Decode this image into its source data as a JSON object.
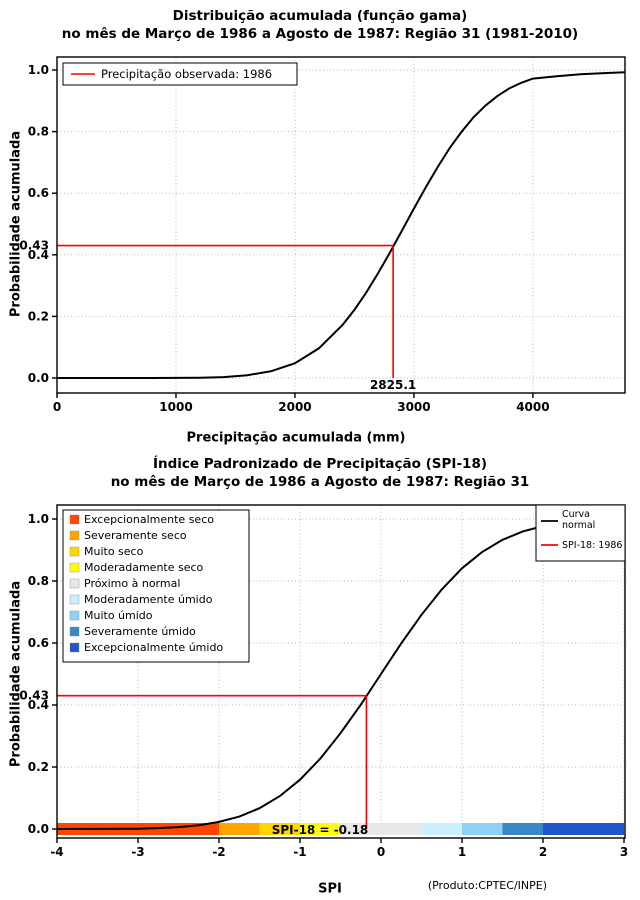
{
  "colors": {
    "accent_red": "#FF0000",
    "curve_black": "#000000",
    "grid": "#B4B4B4",
    "background": "#FFFFFF"
  },
  "chart_data": [
    {
      "id": "gamma-cdf",
      "type": "line",
      "title": "Distribuição acumulada (função gama)",
      "subtitle": "no mês de Março de 1986 a Agosto de 1987: Região 31 (1981-2010)",
      "xlabel": "Precipitação acumulada (mm)",
      "ylabel": "Probabilidade acumulada",
      "xlim": [
        0,
        4774
      ],
      "ylim": [
        0,
        1
      ],
      "xticks": [
        0,
        1000,
        2000,
        3000,
        4000
      ],
      "yticks": [
        0.0,
        0.2,
        0.4,
        0.6,
        0.8,
        1.0
      ],
      "grid": true,
      "legend": {
        "position": "top-left",
        "entries": [
          {
            "label": "Precipitação observada: 1986",
            "color": "#FF0000",
            "type": "line"
          }
        ]
      },
      "series": [
        {
          "name": "Distribuição acumulada (função gama)",
          "color": "#000000",
          "x": [
            0,
            400,
            800,
            1200,
            1400,
            1600,
            1800,
            2000,
            2200,
            2400,
            2500,
            2600,
            2700,
            2800,
            2900,
            3000,
            3100,
            3200,
            3300,
            3400,
            3500,
            3600,
            3700,
            3800,
            3900,
            4000,
            4200,
            4400,
            4600,
            4774
          ],
          "y": [
            0,
            0,
            0,
            0.001,
            0.003,
            0.009,
            0.022,
            0.048,
            0.096,
            0.172,
            0.221,
            0.278,
            0.341,
            0.408,
            0.479,
            0.55,
            0.619,
            0.685,
            0.746,
            0.799,
            0.846,
            0.884,
            0.915,
            0.94,
            0.958,
            0.972,
            0.98,
            0.986,
            0.99,
            0.993
          ]
        }
      ],
      "annotation": {
        "x": 2825.1,
        "y": 0.43,
        "x_label": "2825.1",
        "y_label": "0.43",
        "color": "#FF0000"
      }
    },
    {
      "id": "spi-cdf",
      "type": "line",
      "title": "Índice Padronizado de Precipitação (SPI-18)",
      "subtitle": "no mês de Março de 1986 a Agosto de 1987: Região 31",
      "xlabel": "SPI",
      "ylabel": "Probabilidade acumulada",
      "footer": "(Produto:CPTEC/INPE)",
      "xlim": [
        -4,
        3.0123
      ],
      "ylim": [
        0,
        1
      ],
      "xticks": [
        -4,
        -3,
        -2,
        -1,
        0,
        1,
        2,
        3
      ],
      "yticks": [
        0.0,
        0.2,
        0.4,
        0.6,
        0.8,
        1.0
      ],
      "grid": true,
      "categories_legend": [
        {
          "label": "Excepcionalmente seco",
          "color": "#FF4500"
        },
        {
          "label": "Severamente seco",
          "color": "#FFA500"
        },
        {
          "label": "Muito seco",
          "color": "#FFD700"
        },
        {
          "label": "Moderadamente seco",
          "color": "#FFFF00"
        },
        {
          "label": "Próximo à normal",
          "color": "#E8E8E8"
        },
        {
          "label": "Moderadamente úmido",
          "color": "#CBEFFF"
        },
        {
          "label": "Muito úmido",
          "color": "#8ED1F5"
        },
        {
          "label": "Severamente úmido",
          "color": "#3A87C8"
        },
        {
          "label": "Excepcionalmente úmido",
          "color": "#2355C8"
        }
      ],
      "curve_legend": [
        {
          "lines": [
            "Curva",
            "normal"
          ],
          "color": "#000000"
        },
        {
          "lines": [
            "SPI-18: 1986"
          ],
          "color": "#FF0000"
        }
      ],
      "series": [
        {
          "name": "Curva normal",
          "color": "#000000",
          "x": [
            -4,
            -3.5,
            -3,
            -2.75,
            -2.5,
            -2.25,
            -2,
            -1.75,
            -1.5,
            -1.25,
            -1,
            -0.75,
            -0.5,
            -0.25,
            0,
            0.25,
            0.5,
            0.75,
            1,
            1.25,
            1.5,
            1.75,
            2,
            2.25,
            2.5,
            2.75,
            3
          ],
          "y": [
            0,
            0.0002,
            0.001,
            0.003,
            0.006,
            0.012,
            0.023,
            0.04,
            0.067,
            0.106,
            0.159,
            0.227,
            0.309,
            0.401,
            0.5,
            0.599,
            0.691,
            0.773,
            0.841,
            0.894,
            0.933,
            0.96,
            0.977,
            0.988,
            0.994,
            0.997,
            0.999
          ]
        }
      ],
      "color_bar": [
        {
          "from": -4,
          "to": -2,
          "color": "#FF4500"
        },
        {
          "from": -2,
          "to": -1.5,
          "color": "#FFA500"
        },
        {
          "from": -1.5,
          "to": -1,
          "color": "#FFD700"
        },
        {
          "from": -1,
          "to": -0.5,
          "color": "#FFFF00"
        },
        {
          "from": -0.5,
          "to": 0.5,
          "color": "#E8E8E8"
        },
        {
          "from": 0.5,
          "to": 1,
          "color": "#CBEFFF"
        },
        {
          "from": 1,
          "to": 1.5,
          "color": "#8ED1F5"
        },
        {
          "from": 1.5,
          "to": 2,
          "color": "#3A87C8"
        },
        {
          "from": 2,
          "to": 3,
          "color": "#2355C8"
        }
      ],
      "annotation": {
        "x": -0.18,
        "y": 0.43,
        "x_label": "SPI-18 = -0.18",
        "y_label": "0.43",
        "color": "#FF0000"
      }
    }
  ]
}
